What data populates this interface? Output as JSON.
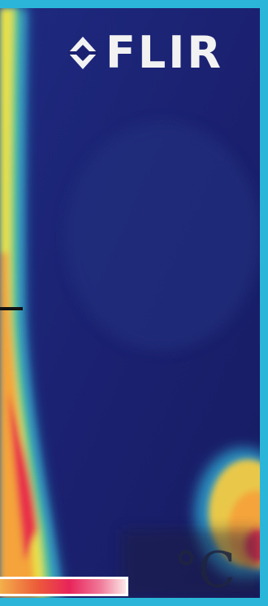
{
  "brand": {
    "logo_text": "FLIR",
    "logo_icon": "flir-diamond-icon"
  },
  "overlay": {
    "unit_label": "°C",
    "crosshair_icon": "crosshair-marker"
  },
  "colors": {
    "frame": "#2bb6d9",
    "background_cold": "#1a1f6e",
    "hot_yellow": "#f6e04a",
    "hot_red": "#e8244a"
  }
}
